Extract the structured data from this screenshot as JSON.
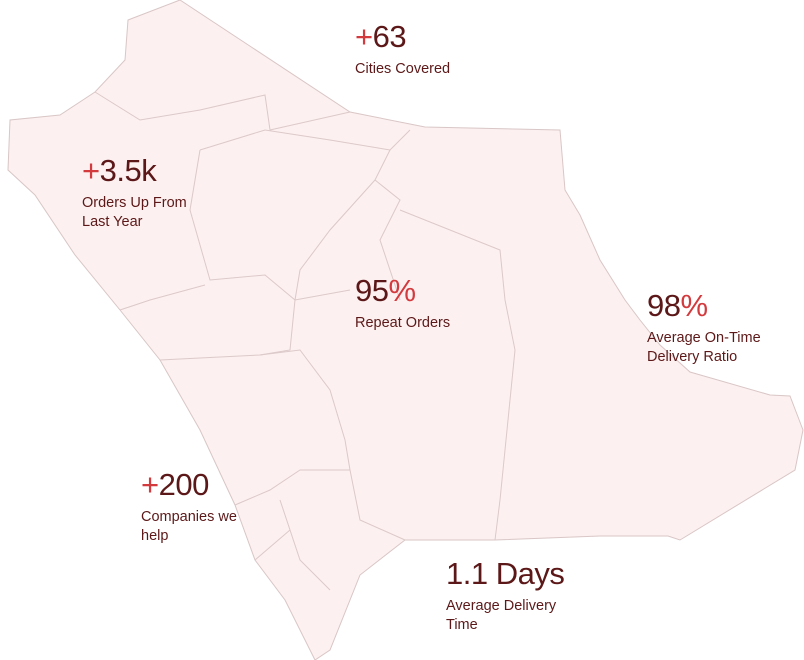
{
  "colors": {
    "map_fill": "#fdf0f0",
    "map_border": "#d9c6c6",
    "accent": "#d23a3e",
    "text": "#5c1818"
  },
  "stats": [
    {
      "prefix": "+",
      "value": "63",
      "suffix": "",
      "label": "Cities Covered"
    },
    {
      "prefix": "+",
      "value": "3.5k",
      "suffix": "",
      "label": "Orders Up From Last Year"
    },
    {
      "prefix": "",
      "value": "95",
      "suffix": "%",
      "label": "Repeat Orders"
    },
    {
      "prefix": "",
      "value": "98",
      "suffix": "%",
      "label": "Average On-Time Delivery Ratio"
    },
    {
      "prefix": "+",
      "value": "200",
      "suffix": "",
      "label": "Companies we help"
    },
    {
      "prefix": "",
      "value": "1.1 Days",
      "suffix": "",
      "label": "Average Delivery Time"
    }
  ]
}
